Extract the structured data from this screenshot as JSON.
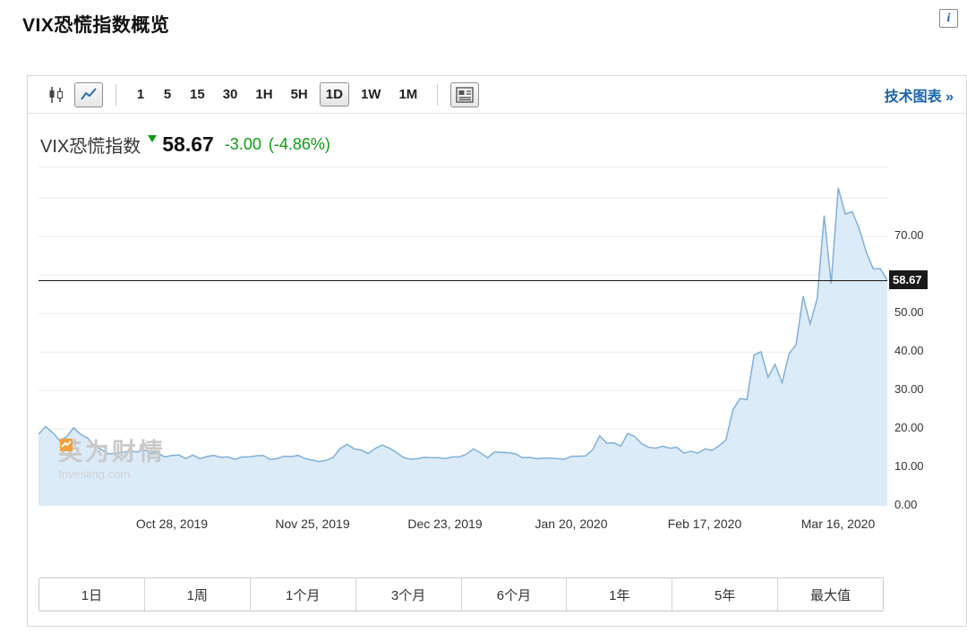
{
  "page": {
    "title": "VIX恐慌指数概览",
    "info_icon_glyph": "i"
  },
  "toolbar": {
    "intervals": [
      "1",
      "5",
      "15",
      "30",
      "1H",
      "5H",
      "1D",
      "1W",
      "1M"
    ],
    "selected_interval": "1D",
    "tech_chart_link": "技术图表 »"
  },
  "header": {
    "instrument": "VIX恐慌指数",
    "last_price": "58.67",
    "change": "-3.00",
    "change_percent": "(-4.86%)",
    "direction": "down"
  },
  "watermark": {
    "cn": "英为财情",
    "en": "Investing.com"
  },
  "range_bar": {
    "items": [
      "1日",
      "1周",
      "1个月",
      "3个月",
      "6个月",
      "1年",
      "5年",
      "最大值"
    ]
  },
  "colors": {
    "change_green": "#0e9b13",
    "link_blue": "#1b63ad",
    "area_fill": "#dcebf8",
    "line_stroke": "#7fb0da",
    "grid": "#ececec",
    "price_tag_bg": "#1a1a1a"
  },
  "chart_data": {
    "type": "area",
    "title": "VIX恐慌指数",
    "ylim": [
      0,
      88
    ],
    "grid_values": [
      10,
      20,
      30,
      40,
      50,
      60,
      70,
      80
    ],
    "y_ticks": [
      {
        "label": "70.00",
        "value": 70
      },
      {
        "label": "50.00",
        "value": 50
      },
      {
        "label": "40.00",
        "value": 40
      },
      {
        "label": "30.00",
        "value": 30
      },
      {
        "label": "20.00",
        "value": 20
      },
      {
        "label": "10.00",
        "value": 10
      },
      {
        "label": "0.00",
        "value": 0
      }
    ],
    "x_ticks": [
      {
        "label": "Oct 28, 2019",
        "date": "2019-10-28"
      },
      {
        "label": "Nov 25, 2019",
        "date": "2019-11-25"
      },
      {
        "label": "Dec 23, 2019",
        "date": "2019-12-23"
      },
      {
        "label": "Jan 20, 2020",
        "date": "2020-01-20"
      },
      {
        "label": "Feb 17, 2020",
        "date": "2020-02-17"
      },
      {
        "label": "Mar 16, 2020",
        "date": "2020-03-16"
      }
    ],
    "last_price": {
      "label": "58.67",
      "value": 58.67
    },
    "dates": [
      "2019-10-01",
      "2019-10-02",
      "2019-10-03",
      "2019-10-04",
      "2019-10-07",
      "2019-10-08",
      "2019-10-09",
      "2019-10-10",
      "2019-10-11",
      "2019-10-14",
      "2019-10-15",
      "2019-10-16",
      "2019-10-17",
      "2019-10-18",
      "2019-10-21",
      "2019-10-22",
      "2019-10-23",
      "2019-10-24",
      "2019-10-25",
      "2019-10-28",
      "2019-10-29",
      "2019-10-30",
      "2019-10-31",
      "2019-11-01",
      "2019-11-04",
      "2019-11-05",
      "2019-11-06",
      "2019-11-07",
      "2019-11-08",
      "2019-11-11",
      "2019-11-12",
      "2019-11-13",
      "2019-11-14",
      "2019-11-15",
      "2019-11-18",
      "2019-11-19",
      "2019-11-20",
      "2019-11-21",
      "2019-11-22",
      "2019-11-25",
      "2019-11-26",
      "2019-11-27",
      "2019-11-29",
      "2019-12-02",
      "2019-12-03",
      "2019-12-04",
      "2019-12-05",
      "2019-12-06",
      "2019-12-09",
      "2019-12-10",
      "2019-12-11",
      "2019-12-12",
      "2019-12-13",
      "2019-12-16",
      "2019-12-17",
      "2019-12-18",
      "2019-12-19",
      "2019-12-20",
      "2019-12-23",
      "2019-12-24",
      "2019-12-26",
      "2019-12-27",
      "2019-12-30",
      "2019-12-31",
      "2020-01-02",
      "2020-01-03",
      "2020-01-06",
      "2020-01-07",
      "2020-01-08",
      "2020-01-09",
      "2020-01-10",
      "2020-01-13",
      "2020-01-14",
      "2020-01-15",
      "2020-01-16",
      "2020-01-17",
      "2020-01-21",
      "2020-01-22",
      "2020-01-23",
      "2020-01-24",
      "2020-01-27",
      "2020-01-28",
      "2020-01-29",
      "2020-01-30",
      "2020-01-31",
      "2020-02-03",
      "2020-02-04",
      "2020-02-05",
      "2020-02-06",
      "2020-02-07",
      "2020-02-10",
      "2020-02-11",
      "2020-02-12",
      "2020-02-13",
      "2020-02-14",
      "2020-02-18",
      "2020-02-19",
      "2020-02-20",
      "2020-02-21",
      "2020-02-24",
      "2020-02-25",
      "2020-02-26",
      "2020-02-27",
      "2020-02-28",
      "2020-03-02",
      "2020-03-03",
      "2020-03-04",
      "2020-03-05",
      "2020-03-06",
      "2020-03-09",
      "2020-03-10",
      "2020-03-11",
      "2020-03-12",
      "2020-03-13",
      "2020-03-16",
      "2020-03-17",
      "2020-03-18",
      "2020-03-19",
      "2020-03-20",
      "2020-03-23",
      "2020-03-24",
      "2020-03-25"
    ],
    "values": [
      18.6,
      20.6,
      19.1,
      17.0,
      17.9,
      20.3,
      18.6,
      17.6,
      15.6,
      14.6,
      13.5,
      13.7,
      13.9,
      14.3,
      14.0,
      14.5,
      14.0,
      13.7,
      12.7,
      13.1,
      13.2,
      12.3,
      13.2,
      12.3,
      12.8,
      13.1,
      12.6,
      12.7,
      12.1,
      12.7,
      12.7,
      13.0,
      13.1,
      12.1,
      12.3,
      12.9,
      12.8,
      13.1,
      12.3,
      11.9,
      11.5,
      11.8,
      12.6,
      14.9,
      16.0,
      14.8,
      14.5,
      13.6,
      14.9,
      15.8,
      15.0,
      13.9,
      12.6,
      12.1,
      12.3,
      12.6,
      12.5,
      12.5,
      12.3,
      12.7,
      12.7,
      13.4,
      14.8,
      13.8,
      12.5,
      14.0,
      13.9,
      13.8,
      13.5,
      12.5,
      12.6,
      12.3,
      12.4,
      12.4,
      12.3,
      12.1,
      12.9,
      12.9,
      13.0,
      14.6,
      18.2,
      16.3,
      16.4,
      15.5,
      18.8,
      18.0,
      16.1,
      15.2,
      15.0,
      15.5,
      15.0,
      15.2,
      13.7,
      14.2,
      13.7,
      14.8,
      14.4,
      15.6,
      17.1,
      25.0,
      27.9,
      27.6,
      39.2,
      40.1,
      33.4,
      36.8,
      32.0,
      39.6,
      41.9,
      54.5,
      47.3,
      53.9,
      75.5,
      57.8,
      82.7,
      75.9,
      76.5,
      72.0,
      66.0,
      61.6,
      61.67,
      58.67
    ]
  }
}
